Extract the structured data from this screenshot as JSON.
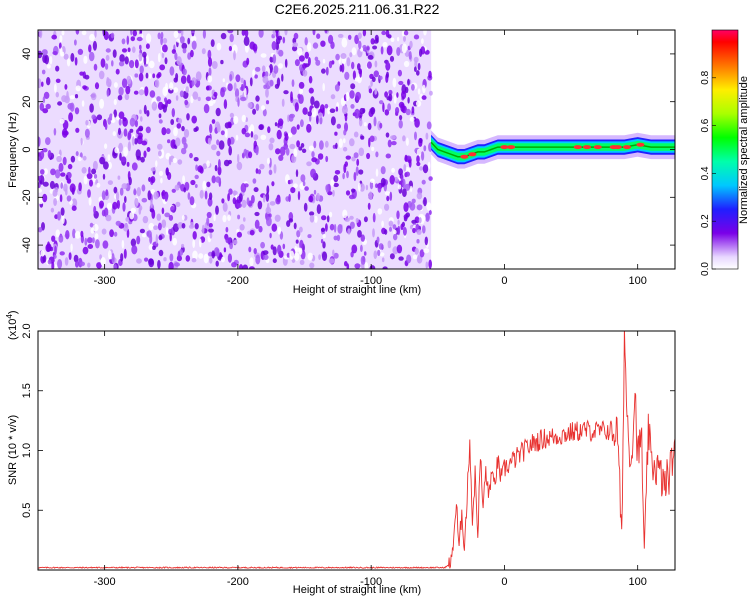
{
  "title": "C2E6.2025.211.06.31.R22",
  "chart_data": [
    {
      "type": "heatmap",
      "ylabel": "Frequency (Hz)",
      "xlabel": "Height of straight line (km)",
      "xlim": [
        -350,
        128
      ],
      "ylim": [
        -50,
        50
      ],
      "xticks": [
        -300,
        -200,
        -100,
        0,
        100
      ],
      "yticks": [
        -40,
        -20,
        0,
        20,
        40
      ],
      "noise_region_x": [
        -350,
        -55
      ],
      "signal_region_x": [
        -55,
        128
      ],
      "signal_centerline": {
        "x": [
          -55,
          -50,
          -45,
          -40,
          -35,
          -30,
          -25,
          -20,
          -15,
          -10,
          -5,
          0,
          10,
          20,
          40,
          60,
          80,
          90,
          100,
          110,
          120,
          128
        ],
        "y": [
          3,
          0,
          -1,
          -2,
          -3,
          -3,
          -2,
          -1,
          -1,
          0,
          1,
          1,
          1,
          1,
          1,
          1,
          1,
          1,
          2,
          1,
          1,
          1
        ]
      },
      "colorbar": {
        "label": "Normalized spectral amplitude",
        "range": [
          0.0,
          1.0
        ],
        "ticks": [
          "0.0",
          "0.2",
          "0.4",
          "0.6",
          "0.8"
        ]
      }
    },
    {
      "type": "line",
      "ylabel": "SNR (10 * v/v)",
      "multiplier_label": "(x10",
      "multiplier_exp": "4",
      "xlabel": "Height of straight line (km)",
      "xlim": [
        -350,
        128
      ],
      "ylim": [
        0,
        2.0
      ],
      "xticks": [
        -300,
        -200,
        -100,
        0,
        100
      ],
      "yticks": [
        "0.5",
        "1.0",
        "1.5",
        "2.0"
      ],
      "color": "#e8312f",
      "series": [
        {
          "x": [
            -350,
            -300,
            -200,
            -100,
            -45,
            -40,
            -38,
            -36,
            -34,
            -32,
            -30,
            -28,
            -26,
            -24,
            -22,
            -20,
            -18,
            -16,
            -14,
            -12,
            -10,
            -8,
            -5,
            -2,
            0,
            5,
            10,
            15,
            20,
            25,
            30,
            40,
            50,
            60,
            70,
            80,
            85,
            88,
            90,
            92,
            95,
            98,
            100,
            103,
            105,
            108,
            110,
            115,
            120,
            125,
            128
          ],
          "y": [
            0.02,
            0.02,
            0.02,
            0.02,
            0.02,
            0.05,
            0.3,
            0.55,
            0.15,
            0.5,
            0.2,
            0.6,
            1.1,
            0.4,
            0.8,
            0.3,
            0.95,
            0.5,
            0.85,
            0.6,
            0.8,
            0.7,
            0.9,
            0.75,
            0.85,
            0.9,
            0.95,
            1.0,
            1.05,
            1.08,
            1.1,
            1.12,
            1.15,
            1.17,
            1.16,
            1.17,
            1.15,
            0.2,
            2.0,
            1.3,
            0.9,
            1.5,
            0.95,
            1.1,
            0.05,
            1.2,
            0.9,
            0.85,
            0.7,
            0.85,
            1.1
          ]
        }
      ]
    }
  ]
}
